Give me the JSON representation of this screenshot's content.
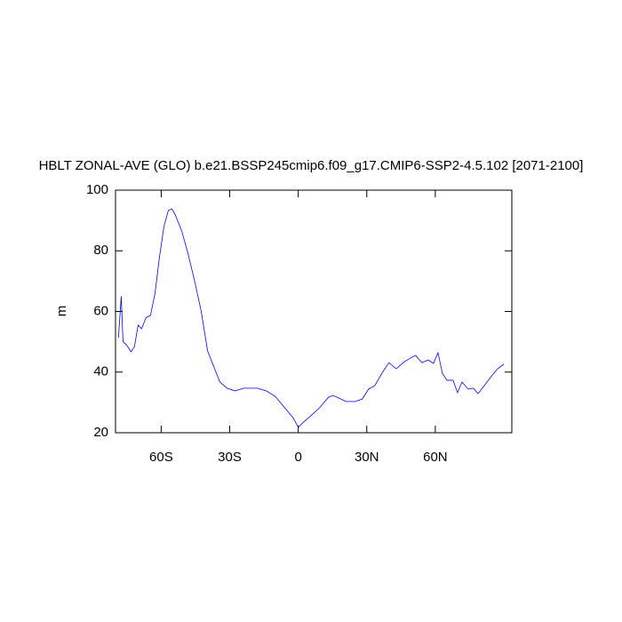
{
  "chart_data": {
    "type": "line",
    "title": "HBLT ZONAL-AVE (GLO) b.e21.BSSP245cmip6.f09_g17.CMIP6-SSP2-4.5.102 [2071-2100]",
    "y_label": "m",
    "xlim": [
      -80,
      93.5
    ],
    "ylim": [
      20,
      100
    ],
    "xticks": [
      {
        "value": -60,
        "label": "60S"
      },
      {
        "value": -30,
        "label": "30S"
      },
      0,
      {
        "value": 30,
        "label": "30N"
      },
      {
        "value": 60,
        "label": "60N"
      }
    ],
    "yticks": [
      20,
      40,
      60,
      80,
      100
    ],
    "grid": false,
    "series": [
      {
        "color": "#0000ff",
        "x": [
          -78.7,
          -77.5,
          -76.7,
          -75.2,
          -73.2,
          -71.7,
          -70.1,
          -68.6,
          -66.6,
          -64.7,
          -62.7,
          -60.8,
          -58.8,
          -56.9,
          -55.3,
          -53.8,
          -51.0,
          -48.3,
          -45.2,
          -42.5,
          -39.7,
          -37.4,
          -34.3,
          -31.2,
          -27.7,
          -23.8,
          -17.9,
          -14.0,
          -10.1,
          -6.2,
          -2.3,
          0,
          2.3,
          5.5,
          9.3,
          13.2,
          15.2,
          17.9,
          21.0,
          24.9,
          28.0,
          30.8,
          33.5,
          36.6,
          39.7,
          42.9,
          46.4,
          49.1,
          51.4,
          54.1,
          56.9,
          59.2,
          61.2,
          63.1,
          65.1,
          67.8,
          69.7,
          71.7,
          74.4,
          76.7,
          78.7,
          81.4,
          84.1,
          87.3,
          90.0
        ],
        "values": [
          51.4,
          65,
          50,
          49,
          46.7,
          48.4,
          55.5,
          54.3,
          58,
          58.7,
          66,
          77.7,
          88,
          93.3,
          93.8,
          91.8,
          86.5,
          79.2,
          69.5,
          60.1,
          47,
          42.6,
          36.7,
          34.7,
          33.8,
          34.7,
          34.7,
          33.8,
          32,
          28.5,
          25,
          21.8,
          23.5,
          25.6,
          28.2,
          31.7,
          32.3,
          31.4,
          30.3,
          30.3,
          31.1,
          34.4,
          35.5,
          39.6,
          43.1,
          41.1,
          43.4,
          44.6,
          45.5,
          43.1,
          44,
          42.9,
          46.4,
          39.6,
          37.3,
          37.3,
          33.2,
          36.7,
          34.4,
          34.7,
          32.9,
          35.5,
          38.2,
          41.1,
          42.6
        ]
      }
    ]
  }
}
